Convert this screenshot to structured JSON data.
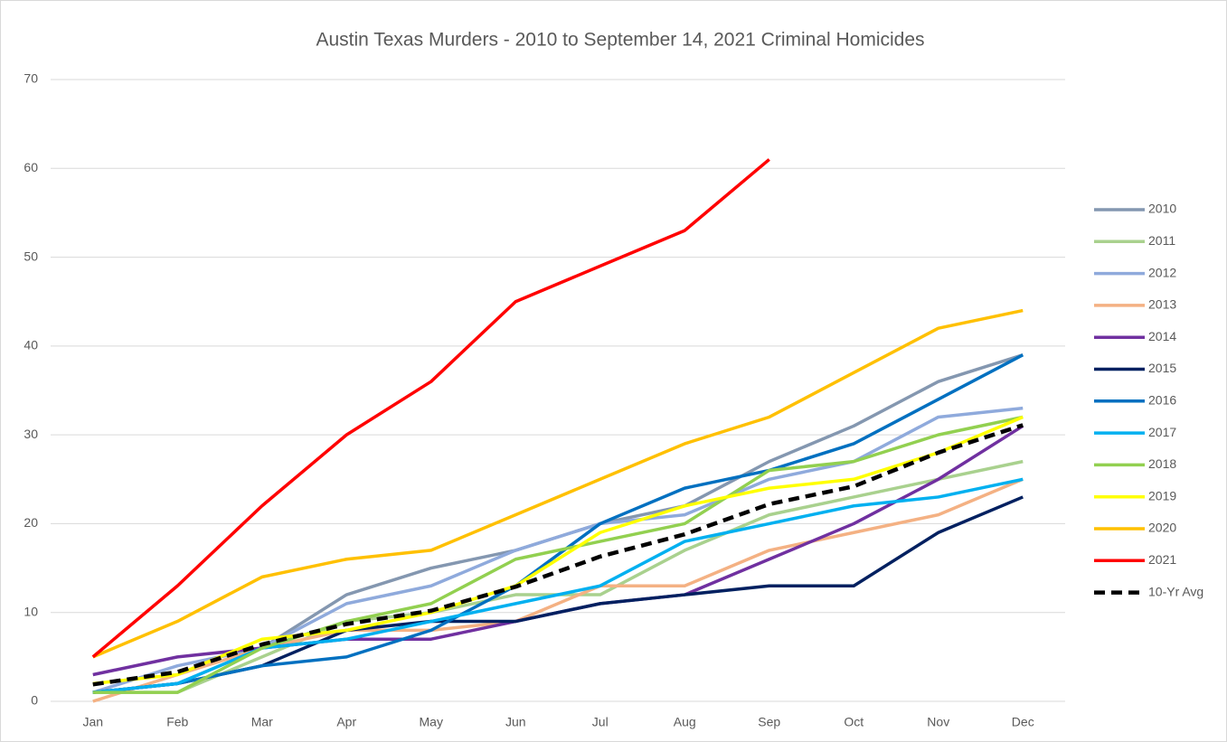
{
  "chart_data": {
    "type": "line",
    "title": "Austin Texas Murders - 2010 to September 14, 2021 Criminal Homicides",
    "categories": [
      "Jan",
      "Feb",
      "Mar",
      "Apr",
      "May",
      "Jun",
      "Jul",
      "Aug",
      "Sep",
      "Oct",
      "Nov",
      "Dec"
    ],
    "ylim": [
      0,
      70
    ],
    "yticks": [
      0,
      10,
      20,
      30,
      40,
      50,
      60,
      70
    ],
    "grid": true,
    "legend": "right",
    "series": [
      {
        "name": "2010",
        "color": "#8497b0",
        "values": [
          1,
          2,
          6,
          12,
          15,
          17,
          20,
          22,
          27,
          31,
          36,
          39
        ]
      },
      {
        "name": "2011",
        "color": "#a9d18e",
        "values": [
          1,
          1,
          5,
          9,
          10,
          12,
          12,
          17,
          21,
          23,
          25,
          27
        ]
      },
      {
        "name": "2012",
        "color": "#8faadc",
        "values": [
          1,
          4,
          6,
          11,
          13,
          17,
          20,
          21,
          25,
          27,
          32,
          33
        ]
      },
      {
        "name": "2013",
        "color": "#f4b183",
        "values": [
          0,
          3,
          6,
          8,
          8,
          9,
          13,
          13,
          17,
          19,
          21,
          25
        ]
      },
      {
        "name": "2014",
        "color": "#7030a0",
        "values": [
          3,
          5,
          6,
          7,
          7,
          9,
          11,
          12,
          16,
          20,
          25,
          31
        ]
      },
      {
        "name": "2015",
        "color": "#002060",
        "values": [
          1,
          2,
          4,
          8,
          9,
          9,
          11,
          12,
          13,
          13,
          19,
          23
        ]
      },
      {
        "name": "2016",
        "color": "#0070c0",
        "values": [
          1,
          2,
          4,
          5,
          8,
          13,
          20,
          24,
          26,
          29,
          34,
          39
        ]
      },
      {
        "name": "2017",
        "color": "#00b0f0",
        "values": [
          1,
          2,
          6,
          7,
          9,
          11,
          13,
          18,
          20,
          22,
          23,
          25
        ]
      },
      {
        "name": "2018",
        "color": "#92d050",
        "values": [
          1,
          1,
          6,
          9,
          11,
          16,
          18,
          20,
          26,
          27,
          30,
          32
        ]
      },
      {
        "name": "2019",
        "color": "#ffff00",
        "values": [
          2,
          3,
          7,
          8,
          10,
          13,
          19,
          22,
          24,
          25,
          28,
          32
        ]
      },
      {
        "name": "2020",
        "color": "#ffc000",
        "values": [
          5,
          9,
          14,
          16,
          17,
          21,
          25,
          29,
          32,
          37,
          42,
          44
        ]
      },
      {
        "name": "2021",
        "color": "#ff0000",
        "values": [
          5,
          13,
          22,
          30,
          36,
          45,
          49,
          53,
          61,
          null,
          null,
          null
        ]
      },
      {
        "name": "10-Yr Avg",
        "color": "#000000",
        "dashed": true,
        "values": [
          1.9,
          3.3,
          6.4,
          8.7,
          10.2,
          12.9,
          16.3,
          18.8,
          22.2,
          24.2,
          28,
          31.1
        ]
      }
    ]
  }
}
